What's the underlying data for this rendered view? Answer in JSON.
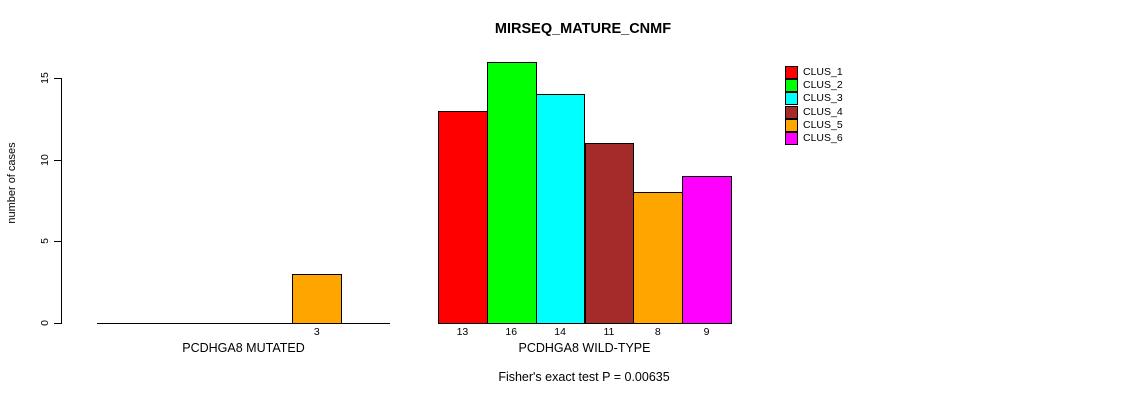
{
  "title": "MIRSEQ_MATURE_CNMF",
  "chart_data": {
    "type": "bar",
    "title": "MIRSEQ_MATURE_CNMF",
    "xlabel": "",
    "ylabel": "number of cases",
    "ylim": [
      0,
      16.5
    ],
    "yticks": [
      0,
      5,
      10,
      15
    ],
    "grid": false,
    "legend_position": "top-right",
    "categories": [
      "PCDHGA8 MUTATED",
      "PCDHGA8 WILD-TYPE"
    ],
    "series": [
      {
        "name": "CLUS_1",
        "color": "#FF0000",
        "values": [
          0,
          13
        ]
      },
      {
        "name": "CLUS_2",
        "color": "#00FF00",
        "values": [
          0,
          16
        ]
      },
      {
        "name": "CLUS_3",
        "color": "#00FFFF",
        "values": [
          0,
          14
        ]
      },
      {
        "name": "CLUS_4",
        "color": "#A52A2A",
        "values": [
          0,
          11
        ]
      },
      {
        "name": "CLUS_5",
        "color": "#FFA500",
        "values": [
          3,
          8
        ]
      },
      {
        "name": "CLUS_6",
        "color": "#FF00FF",
        "values": [
          0,
          9
        ]
      }
    ],
    "bar_value_labels": [
      [
        "",
        "",
        "",
        "",
        "3",
        ""
      ],
      [
        "13",
        "16",
        "14",
        "11",
        "8",
        "9"
      ]
    ],
    "annotation": "Fisher's exact test P = 0.00635"
  }
}
